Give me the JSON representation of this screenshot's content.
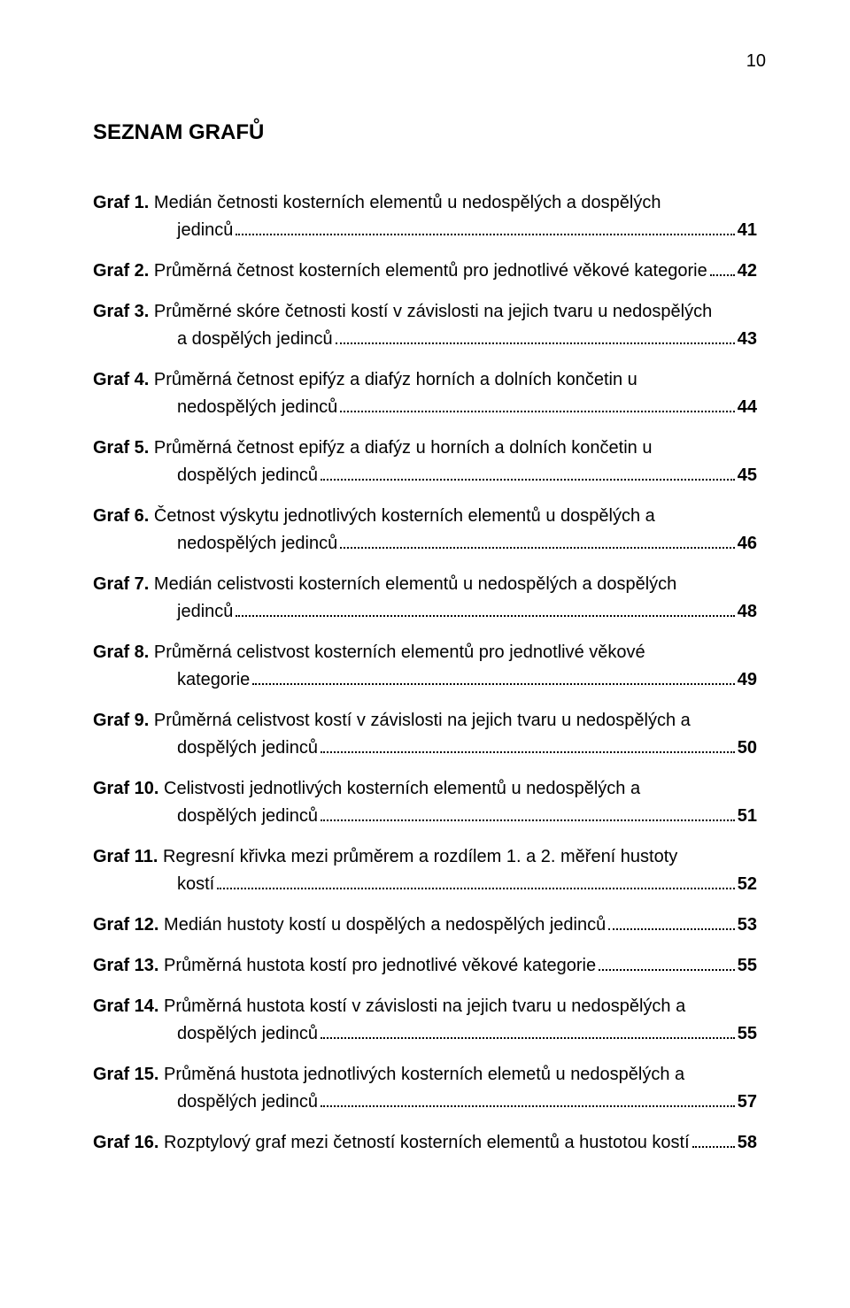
{
  "pageNumber": "10",
  "title": "SEZNAM GRAFŮ",
  "entries": [
    {
      "label": "Graf 1.",
      "first": "Medián četnosti kosterních elementů u nedospělých a dospělých",
      "cont": "jedinců",
      "page": "41"
    },
    {
      "label": "Graf 2.",
      "first": "Průměrná četnost kosterních elementů pro jednotlivé věkové kategorie",
      "cont": null,
      "page": "42"
    },
    {
      "label": "Graf 3.",
      "first": "Průměrné skóre četnosti kostí v závislosti na jejich tvaru u nedospělých",
      "cont": "a dospělých jedinců",
      "page": "43"
    },
    {
      "label": "Graf 4.",
      "first": "Průměrná četnost epifýz a diafýz horních a dolních končetin u",
      "cont": "nedospělých jedinců",
      "page": "44"
    },
    {
      "label": "Graf 5.",
      "first": "Průměrná četnost epifýz a diafýz u horních a dolních končetin u",
      "cont": "dospělých jedinců",
      "page": "45"
    },
    {
      "label": "Graf 6.",
      "first": "Četnost výskytu jednotlivých kosterních elementů u dospělých a",
      "cont": "nedospělých jedinců",
      "page": "46"
    },
    {
      "label": "Graf 7.",
      "first": "Medián celistvosti kosterních elementů u nedospělých a dospělých",
      "cont": "jedinců",
      "page": "48"
    },
    {
      "label": "Graf 8.",
      "first": "Průměrná celistvost kosterních elementů pro jednotlivé věkové",
      "cont": "kategorie",
      "page": "49"
    },
    {
      "label": "Graf 9.",
      "first": "Průměrná celistvost kostí v závislosti na jejich tvaru u nedospělých a",
      "cont": "dospělých jedinců",
      "page": "50"
    },
    {
      "label": "Graf 10.",
      "first": "Celistvosti jednotlivých kosterních elementů u nedospělých a",
      "cont": "dospělých jedinců",
      "page": "51"
    },
    {
      "label": "Graf 11.",
      "first": "Regresní křivka mezi průměrem a rozdílem 1. a 2. měření hustoty",
      "cont": "kostí",
      "page": "52"
    },
    {
      "label": "Graf 12.",
      "first": "Medián hustoty kostí u dospělých a nedospělých jedinců",
      "cont": null,
      "page": "53"
    },
    {
      "label": "Graf 13.",
      "first": "Průměrná hustota kostí pro jednotlivé věkové kategorie",
      "cont": null,
      "page": "55"
    },
    {
      "label": "Graf 14.",
      "first": "Průměrná hustota kostí v závislosti na jejich tvaru u nedospělých a",
      "cont": "dospělých jedinců",
      "page": "55"
    },
    {
      "label": "Graf 15.",
      "first": "Průměná hustota jednotlivých kosterních elemetů u nedospělých a",
      "cont": "dospělých jedinců",
      "page": "57"
    },
    {
      "label": "Graf 16.",
      "first": "Rozptylový graf mezi četností kosterních elementů a hustotou kostí",
      "cont": null,
      "page": "58"
    }
  ]
}
